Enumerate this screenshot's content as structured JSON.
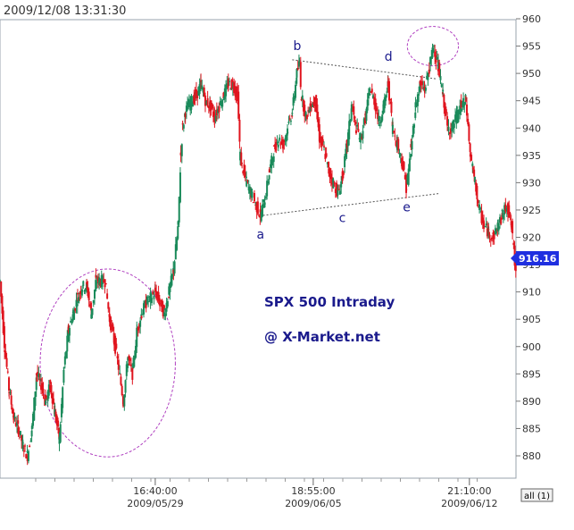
{
  "timestamp": "2009/12/08 13:31:30",
  "annotation_title": "SPX 500 Intraday",
  "annotation_source": "@ X-Market.net",
  "last_price": "916.16",
  "all_button": "all (1)",
  "colors": {
    "up": "#1a8a5a",
    "down": "#e0141e",
    "ellipse": "#b040c0",
    "trendline": "#555555",
    "wave_label": "#1a1a8c",
    "price_tag": "#1f2fe0"
  },
  "chart_data": {
    "type": "line",
    "title": "",
    "xlabel": "",
    "ylabel": "",
    "ylim": [
      876,
      962
    ],
    "xlim": [
      0,
      565
    ],
    "y_ticks": [
      880,
      885,
      890,
      895,
      900,
      905,
      910,
      915,
      920,
      925,
      930,
      935,
      940,
      945,
      950,
      955,
      960
    ],
    "x_ticks": [
      {
        "x": 170,
        "time": "16:40:00",
        "date": "2009/05/29"
      },
      {
        "x": 343,
        "time": "18:55:00",
        "date": "2009/06/05"
      },
      {
        "x": 514,
        "time": "21:10:00",
        "date": "2009/06/12"
      }
    ],
    "series": [
      {
        "x": [
          0,
          5,
          10,
          15,
          20,
          25,
          30,
          35,
          40,
          45,
          50,
          55,
          60,
          65,
          70,
          75,
          80,
          85,
          90,
          95,
          100,
          105,
          110,
          115,
          120,
          125,
          130,
          135,
          140,
          145,
          150,
          155,
          160,
          165,
          170,
          175,
          180,
          185,
          190,
          195,
          198,
          200,
          203,
          206,
          210,
          215,
          220,
          225,
          230,
          235,
          240,
          245,
          250,
          255,
          260,
          263,
          265,
          270,
          275,
          280,
          285,
          290,
          295,
          300,
          305,
          310,
          315,
          320,
          325,
          328,
          330,
          335,
          340,
          345,
          350,
          355,
          360,
          365,
          370,
          375,
          380,
          385,
          390,
          395,
          400,
          405,
          410,
          415,
          420,
          425,
          430,
          435,
          440,
          445,
          450,
          455,
          460,
          465,
          470,
          475,
          480,
          485,
          490,
          495,
          500,
          505,
          510,
          515,
          518,
          520,
          525,
          530,
          535,
          540,
          545,
          550,
          555,
          560,
          565
        ],
        "values": [
          912,
          900,
          892,
          887,
          885,
          882,
          880,
          885,
          895,
          893,
          890,
          893,
          888,
          883,
          896,
          903,
          906,
          909,
          911,
          911,
          906,
          912,
          912,
          912,
          905,
          901,
          896,
          890,
          898,
          895,
          903,
          906,
          908,
          909,
          910,
          908,
          906,
          910,
          914,
          922,
          935,
          940,
          943,
          944,
          945,
          946,
          948,
          945,
          944,
          942,
          944,
          946,
          948,
          948,
          946,
          935,
          933,
          930,
          928,
          926,
          924,
          927,
          932,
          936,
          938,
          937,
          940,
          943,
          950,
          952,
          946,
          942,
          944,
          945,
          938,
          936,
          932,
          930,
          928,
          931,
          937,
          944,
          940,
          938,
          942,
          947,
          945,
          941,
          944,
          948,
          940,
          937,
          934,
          929,
          936,
          944,
          948,
          947,
          951,
          955,
          951,
          946,
          940,
          940,
          942,
          944,
          945,
          935,
          932,
          930,
          925,
          922,
          921,
          920,
          922,
          924,
          926,
          922,
          913
        ]
      }
    ],
    "wave_labels": [
      {
        "text": "a",
        "x": 285,
        "y": 924
      },
      {
        "text": "b",
        "x": 325,
        "y": 952
      },
      {
        "text": "c",
        "x": 375,
        "y": 927
      },
      {
        "text": "d",
        "x": 425,
        "y": 950
      },
      {
        "text": "e",
        "x": 445,
        "y": 929
      }
    ],
    "trendlines": [
      {
        "x1": 320,
        "y1": 952.5,
        "x2": 478,
        "y2": 949
      },
      {
        "x1": 288,
        "y1": 924,
        "x2": 480,
        "y2": 928
      }
    ],
    "ellipses": [
      {
        "cx": 118,
        "cy": 897,
        "rx": 74,
        "ry": 17.2
      },
      {
        "cx": 474,
        "cy": 955,
        "rx": 28,
        "ry": 3.6
      }
    ]
  }
}
